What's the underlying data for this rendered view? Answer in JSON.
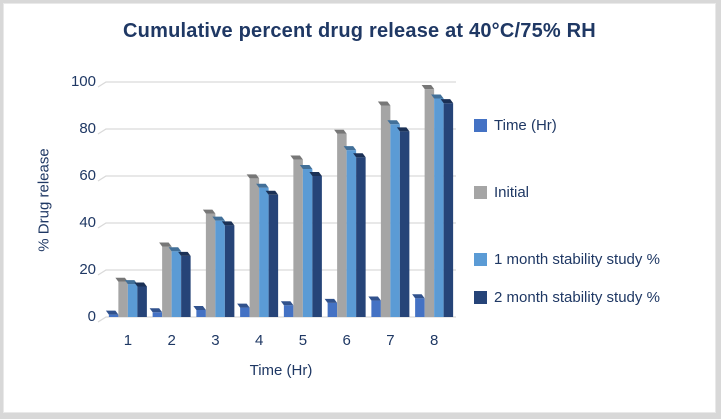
{
  "chart_data": {
    "type": "bar",
    "title": "Cumulative percent drug release at 40°C/75% RH",
    "xlabel": "Time (Hr)",
    "ylabel": "% Drug release",
    "categories": [
      "1",
      "2",
      "3",
      "4",
      "5",
      "6",
      "7",
      "8"
    ],
    "series": [
      {
        "name": "Time (Hr)",
        "color": "#4472C4",
        "values": [
          1,
          2,
          3,
          4,
          5,
          6,
          7,
          8
        ]
      },
      {
        "name": "Initial",
        "color": "#A5A5A5",
        "values": [
          15,
          30,
          44,
          59,
          67,
          78,
          90,
          97
        ]
      },
      {
        "name": "1 month stability study %",
        "color": "#5B9BD5",
        "values": [
          14,
          28,
          41,
          55,
          63,
          71,
          82,
          93
        ]
      },
      {
        "name": "2 month stability study %",
        "color": "#264478",
        "values": [
          13,
          26,
          39,
          52,
          60,
          68,
          79,
          91
        ]
      }
    ],
    "ylim": [
      0,
      100
    ],
    "yticks": [
      0,
      20,
      40,
      60,
      80,
      100
    ],
    "legend_position": "right",
    "grid": true,
    "style_3d": true,
    "colors": {
      "text": "#1F3864",
      "gridline": "#D9D9D9",
      "frame": "#D8D8D8",
      "background": "#FFFFFF"
    }
  }
}
